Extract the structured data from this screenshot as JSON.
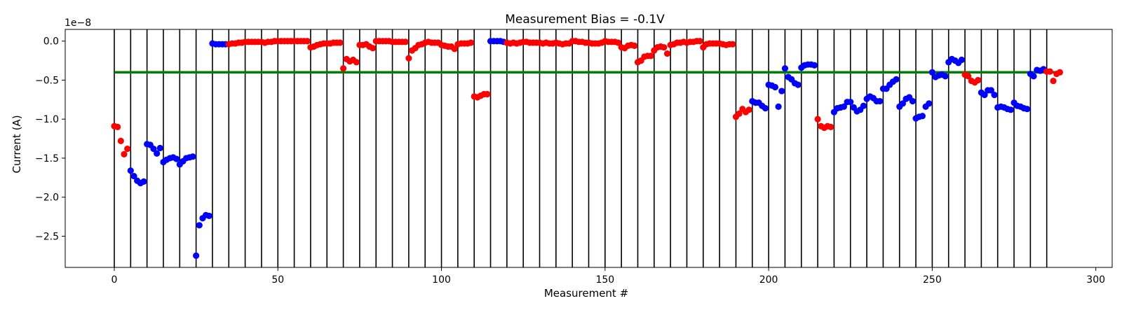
{
  "chart_data": {
    "type": "scatter",
    "title": "Measurement Bias = -0.1V",
    "xlabel": "Measurement #",
    "ylabel": "Current (A)",
    "y_offset_label": "1e−8",
    "xlim": [
      -15,
      305
    ],
    "ylim": [
      -2.9,
      0.15
    ],
    "x_ticks": [
      0,
      50,
      100,
      150,
      200,
      250,
      300
    ],
    "y_ticks": [
      0.0,
      -0.5,
      -1.0,
      -1.5,
      -2.0,
      -2.5
    ],
    "x_tick_labels": [
      "0",
      "50",
      "100",
      "150",
      "200",
      "250",
      "300"
    ],
    "y_tick_labels": [
      "0.0",
      "−0.5",
      "−1.0",
      "−1.5",
      "−2.0",
      "−2.5"
    ],
    "y_scale_note": "values in units of 1e-8 A",
    "vertical_lines_x": [
      0,
      5,
      10,
      15,
      20,
      25,
      30,
      35,
      40,
      45,
      50,
      55,
      60,
      65,
      70,
      75,
      80,
      85,
      90,
      95,
      100,
      105,
      110,
      115,
      120,
      125,
      130,
      135,
      140,
      145,
      150,
      155,
      160,
      165,
      170,
      175,
      180,
      185,
      190,
      195,
      200,
      205,
      210,
      215,
      220,
      225,
      230,
      235,
      240,
      245,
      250,
      255,
      260,
      265,
      270,
      275,
      280,
      285
    ],
    "threshold_line": {
      "y": -0.4,
      "x_range": [
        0,
        289
      ],
      "color": "#008000"
    },
    "grid": false,
    "colors": {
      "red": "#ff0000",
      "blue": "#0000ff"
    },
    "groups": [
      {
        "color": "red",
        "x0": 0,
        "y": [
          -1.09,
          -1.1,
          -1.28,
          -1.45,
          -1.38
        ]
      },
      {
        "color": "blue",
        "x0": 5,
        "y": [
          -1.66,
          -1.73,
          -1.79,
          -1.82,
          -1.8
        ]
      },
      {
        "color": "blue",
        "x0": 10,
        "y": [
          -1.32,
          -1.33,
          -1.38,
          -1.44,
          -1.37
        ]
      },
      {
        "color": "blue",
        "x0": 15,
        "y": [
          -1.55,
          -1.52,
          -1.5,
          -1.49,
          -1.51
        ]
      },
      {
        "color": "blue",
        "x0": 20,
        "y": [
          -1.58,
          -1.54,
          -1.5,
          -1.49,
          -1.48
        ]
      },
      {
        "color": "blue",
        "x0": 25,
        "y": [
          -2.75,
          -2.36,
          -2.27,
          -2.23,
          -2.24
        ]
      },
      {
        "color": "blue",
        "x0": 30,
        "y": [
          -0.03,
          -0.04,
          -0.04,
          -0.04,
          -0.04
        ]
      },
      {
        "color": "red",
        "x0": 35,
        "y": [
          -0.04,
          -0.03,
          -0.03,
          -0.02,
          -0.02
        ]
      },
      {
        "color": "red",
        "x0": 40,
        "y": [
          -0.01,
          -0.01,
          -0.01,
          -0.01,
          -0.01
        ]
      },
      {
        "color": "red",
        "x0": 45,
        "y": [
          -0.01,
          -0.02,
          -0.01,
          -0.01,
          0.0
        ]
      },
      {
        "color": "red",
        "x0": 50,
        "y": [
          0.0,
          0.0,
          0.0,
          0.0,
          0.0
        ]
      },
      {
        "color": "red",
        "x0": 55,
        "y": [
          0.0,
          0.0,
          0.0,
          0.0,
          0.0
        ]
      },
      {
        "color": "red",
        "x0": 60,
        "y": [
          -0.08,
          -0.07,
          -0.05,
          -0.04,
          -0.03
        ]
      },
      {
        "color": "red",
        "x0": 65,
        "y": [
          -0.03,
          -0.03,
          -0.02,
          -0.02,
          -0.02
        ]
      },
      {
        "color": "red",
        "x0": 70,
        "y": [
          -0.35,
          -0.23,
          -0.26,
          -0.24,
          -0.27
        ]
      },
      {
        "color": "red",
        "x0": 75,
        "y": [
          -0.05,
          -0.05,
          -0.04,
          -0.07,
          -0.09
        ]
      },
      {
        "color": "red",
        "x0": 80,
        "y": [
          0.0,
          0.0,
          0.0,
          0.0,
          0.0
        ]
      },
      {
        "color": "red",
        "x0": 85,
        "y": [
          -0.01,
          -0.01,
          -0.01,
          -0.01,
          -0.01
        ]
      },
      {
        "color": "red",
        "x0": 90,
        "y": [
          -0.22,
          -0.12,
          -0.09,
          -0.05,
          -0.04
        ]
      },
      {
        "color": "red",
        "x0": 95,
        "y": [
          -0.02,
          -0.01,
          -0.02,
          -0.02,
          -0.02
        ]
      },
      {
        "color": "red",
        "x0": 100,
        "y": [
          -0.05,
          -0.06,
          -0.07,
          -0.07,
          -0.1
        ]
      },
      {
        "color": "red",
        "x0": 105,
        "y": [
          -0.04,
          -0.03,
          -0.03,
          -0.03,
          -0.02
        ]
      },
      {
        "color": "red",
        "x0": 110,
        "y": [
          -0.71,
          -0.72,
          -0.7,
          -0.68,
          -0.68
        ]
      },
      {
        "color": "blue",
        "x0": 115,
        "y": [
          0.0,
          0.0,
          0.0,
          0.0,
          -0.01
        ]
      },
      {
        "color": "red",
        "x0": 120,
        "y": [
          -0.02,
          -0.03,
          -0.02,
          -0.03,
          -0.02
        ]
      },
      {
        "color": "red",
        "x0": 125,
        "y": [
          -0.01,
          -0.01,
          -0.02,
          -0.02,
          -0.02
        ]
      },
      {
        "color": "red",
        "x0": 130,
        "y": [
          -0.02,
          -0.03,
          -0.02,
          -0.03,
          -0.03
        ]
      },
      {
        "color": "red",
        "x0": 135,
        "y": [
          -0.02,
          -0.03,
          -0.04,
          -0.03,
          -0.03
        ]
      },
      {
        "color": "red",
        "x0": 140,
        "y": [
          0.0,
          0.0,
          -0.01,
          -0.01,
          -0.02
        ]
      },
      {
        "color": "red",
        "x0": 145,
        "y": [
          -0.02,
          -0.03,
          -0.03,
          -0.03,
          -0.02
        ]
      },
      {
        "color": "red",
        "x0": 150,
        "y": [
          0.0,
          -0.01,
          -0.01,
          -0.01,
          -0.02
        ]
      },
      {
        "color": "red",
        "x0": 155,
        "y": [
          -0.08,
          -0.09,
          -0.06,
          -0.05,
          -0.06
        ]
      },
      {
        "color": "red",
        "x0": 160,
        "y": [
          -0.27,
          -0.25,
          -0.2,
          -0.19,
          -0.19
        ]
      },
      {
        "color": "red",
        "x0": 165,
        "y": [
          -0.12,
          -0.08,
          -0.07,
          -0.08,
          -0.16
        ]
      },
      {
        "color": "red",
        "x0": 170,
        "y": [
          -0.05,
          -0.04,
          -0.02,
          -0.02,
          -0.01
        ]
      },
      {
        "color": "red",
        "x0": 175,
        "y": [
          -0.02,
          -0.01,
          -0.01,
          0.0,
          0.0
        ]
      },
      {
        "color": "red",
        "x0": 180,
        "y": [
          -0.08,
          -0.04,
          -0.03,
          -0.03,
          -0.03
        ]
      },
      {
        "color": "red",
        "x0": 185,
        "y": [
          -0.03,
          -0.04,
          -0.05,
          -0.04,
          -0.04
        ]
      },
      {
        "color": "red",
        "x0": 190,
        "y": [
          -0.97,
          -0.93,
          -0.87,
          -0.91,
          -0.88
        ]
      },
      {
        "color": "blue",
        "x0": 195,
        "y": [
          -0.77,
          -0.79,
          -0.79,
          -0.83,
          -0.86
        ]
      },
      {
        "color": "blue",
        "x0": 200,
        "y": [
          -0.56,
          -0.57,
          -0.59,
          -0.84,
          -0.64
        ]
      },
      {
        "color": "blue",
        "x0": 205,
        "y": [
          -0.35,
          -0.46,
          -0.49,
          -0.54,
          -0.56
        ]
      },
      {
        "color": "blue",
        "x0": 210,
        "y": [
          -0.34,
          -0.31,
          -0.3,
          -0.3,
          -0.31
        ]
      },
      {
        "color": "red",
        "x0": 215,
        "y": [
          -1.0,
          -1.09,
          -1.11,
          -1.09,
          -1.1
        ]
      },
      {
        "color": "blue",
        "x0": 220,
        "y": [
          -0.91,
          -0.86,
          -0.85,
          -0.84,
          -0.78
        ]
      },
      {
        "color": "blue",
        "x0": 225,
        "y": [
          -0.78,
          -0.85,
          -0.9,
          -0.88,
          -0.83
        ]
      },
      {
        "color": "blue",
        "x0": 230,
        "y": [
          -0.74,
          -0.71,
          -0.73,
          -0.77,
          -0.77
        ]
      },
      {
        "color": "blue",
        "x0": 235,
        "y": [
          -0.61,
          -0.61,
          -0.56,
          -0.52,
          -0.49
        ]
      },
      {
        "color": "blue",
        "x0": 240,
        "y": [
          -0.84,
          -0.8,
          -0.74,
          -0.72,
          -0.77
        ]
      },
      {
        "color": "blue",
        "x0": 245,
        "y": [
          -0.99,
          -0.97,
          -0.96,
          -0.84,
          -0.8
        ]
      },
      {
        "color": "blue",
        "x0": 250,
        "y": [
          -0.4,
          -0.46,
          -0.44,
          -0.43,
          -0.45
        ]
      },
      {
        "color": "blue",
        "x0": 255,
        "y": [
          -0.27,
          -0.23,
          -0.25,
          -0.28,
          -0.24
        ]
      },
      {
        "color": "red",
        "x0": 260,
        "y": [
          -0.43,
          -0.45,
          -0.51,
          -0.53,
          -0.5
        ]
      },
      {
        "color": "blue",
        "x0": 265,
        "y": [
          -0.66,
          -0.69,
          -0.63,
          -0.63,
          -0.69
        ]
      },
      {
        "color": "blue",
        "x0": 270,
        "y": [
          -0.85,
          -0.84,
          -0.85,
          -0.87,
          -0.88
        ]
      },
      {
        "color": "blue",
        "x0": 275,
        "y": [
          -0.79,
          -0.83,
          -0.84,
          -0.86,
          -0.87
        ]
      },
      {
        "color": "blue",
        "x0": 280,
        "y": [
          -0.42,
          -0.45,
          -0.37,
          -0.38,
          -0.36
        ]
      },
      {
        "color": "red",
        "x0": 285,
        "y": [
          -0.39,
          -0.39,
          -0.51,
          -0.42,
          -0.4
        ]
      }
    ]
  }
}
